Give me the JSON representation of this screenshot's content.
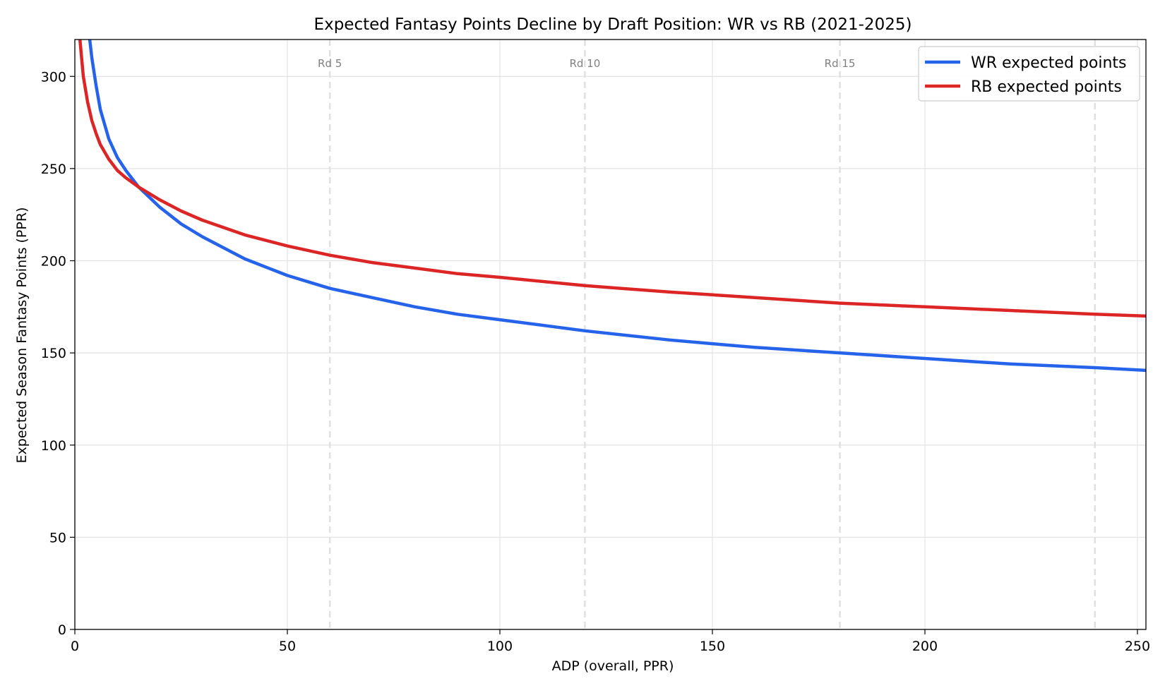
{
  "chart_data": {
    "type": "line",
    "title": "Expected Fantasy Points Decline by Draft Position: WR vs RB (2021-2025)",
    "xlabel": "ADP (overall, PPR)",
    "ylabel": "Expected Season Fantasy Points (PPR)",
    "xlim": [
      0,
      252
    ],
    "ylim": [
      0,
      320
    ],
    "xticks": [
      0,
      50,
      100,
      150,
      200,
      250
    ],
    "yticks": [
      0,
      50,
      100,
      150,
      200,
      250,
      300
    ],
    "grid": true,
    "legend_position": "top-right",
    "round_markers": [
      {
        "x": 60,
        "label": "Rd 5"
      },
      {
        "x": 120,
        "label": "Rd 10"
      },
      {
        "x": 180,
        "label": "Rd 15"
      },
      {
        "x": 240,
        "label": ""
      }
    ],
    "series": [
      {
        "name": "WR expected points",
        "color": "#2563eb",
        "x": [
          3.5,
          4,
          5,
          6,
          8,
          10,
          12,
          15,
          20,
          25,
          30,
          40,
          50,
          60,
          70,
          80,
          90,
          100,
          120,
          140,
          150,
          160,
          180,
          200,
          220,
          240,
          252
        ],
        "y": [
          320,
          310,
          295,
          282,
          266,
          256,
          249,
          240,
          229,
          220,
          213,
          201,
          192,
          185,
          180,
          175,
          171,
          168,
          162,
          157,
          155,
          153,
          150,
          147,
          144,
          142,
          140.5
        ]
      },
      {
        "name": "RB expected points",
        "color": "#dc2626",
        "x": [
          1.2,
          2,
          3,
          4,
          5,
          6,
          8,
          10,
          12,
          15,
          20,
          25,
          30,
          40,
          50,
          60,
          70,
          80,
          90,
          100,
          120,
          140,
          150,
          160,
          180,
          200,
          220,
          240,
          252
        ],
        "y": [
          320,
          300,
          286,
          276,
          269,
          263,
          255,
          249,
          245,
          240,
          233,
          227,
          222,
          214,
          208,
          203,
          199,
          196,
          193,
          191,
          186.5,
          183,
          181.5,
          180,
          177,
          175,
          173,
          171,
          170
        ]
      }
    ]
  }
}
